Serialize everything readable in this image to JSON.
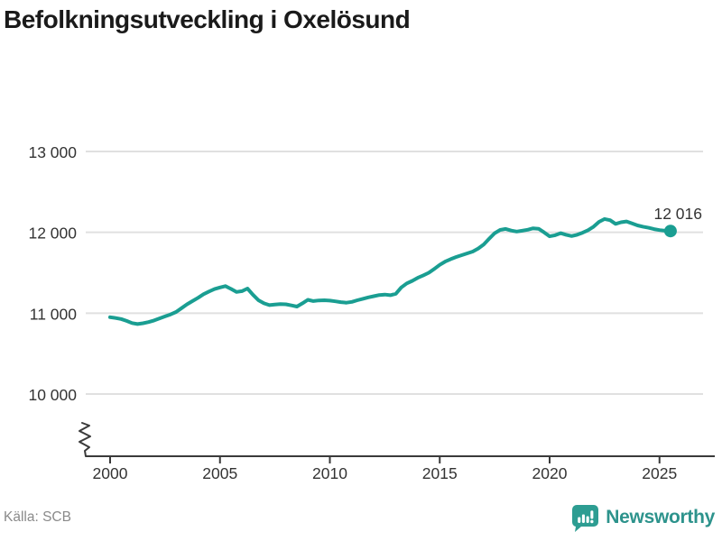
{
  "title": "Befolkningsutveckling i Oxelösund",
  "footer": {
    "source": "Källa: SCB",
    "brand": "Newsworthy"
  },
  "colors": {
    "line": "#1a9e92",
    "grid": "#e0e0e0",
    "axis": "#3a3a3a",
    "tick_label": "#333333",
    "end_label": "#333333",
    "title_text": "#1a1a1a",
    "source_text": "#8a8a8a",
    "brand_teal": "#2d938c"
  },
  "chart_data": {
    "type": "line",
    "title": "Befolkningsutveckling i Oxelösund",
    "xlabel": "",
    "ylabel": "",
    "grid": "horizontal",
    "axis_break_bottom_left": true,
    "x_ticks": [
      2000,
      2005,
      2010,
      2015,
      2020,
      2025
    ],
    "y_ticks": [
      {
        "value": 10000,
        "label": "10 000"
      },
      {
        "value": 11000,
        "label": "11 000"
      },
      {
        "value": 12000,
        "label": "12 000"
      },
      {
        "value": 13000,
        "label": "13 000"
      }
    ],
    "xlim": [
      2000,
      2027.5
    ],
    "ylim_shown": [
      10000,
      13000
    ],
    "source": "SCB",
    "series": [
      {
        "name": "Befolkning i Oxelösund",
        "start_year": 2000,
        "interval_years": 0.25,
        "values": [
          10950,
          10940,
          10928,
          10905,
          10878,
          10865,
          10876,
          10890,
          10910,
          10936,
          10960,
          10985,
          11015,
          11062,
          11110,
          11150,
          11190,
          11235,
          11268,
          11298,
          11318,
          11335,
          11300,
          11262,
          11272,
          11305,
          11228,
          11160,
          11122,
          11100,
          11106,
          11112,
          11110,
          11096,
          11082,
          11122,
          11165,
          11150,
          11158,
          11160,
          11155,
          11146,
          11136,
          11130,
          11140,
          11160,
          11178,
          11195,
          11210,
          11225,
          11230,
          11222,
          11240,
          11318,
          11368,
          11400,
          11438,
          11468,
          11500,
          11548,
          11598,
          11638,
          11668,
          11695,
          11718,
          11740,
          11762,
          11800,
          11850,
          11920,
          11990,
          12030,
          12042,
          12022,
          12010,
          12020,
          12032,
          12050,
          12044,
          12000,
          11950,
          11964,
          11990,
          11970,
          11954,
          11970,
          11995,
          12026,
          12070,
          12130,
          12165,
          12150,
          12105,
          12124,
          12135,
          12110,
          12086,
          12070,
          12056,
          12040,
          12028,
          12020,
          12016
        ]
      }
    ],
    "last_point": {
      "year": 2025.5,
      "value": 12016,
      "label": "12 016"
    }
  }
}
